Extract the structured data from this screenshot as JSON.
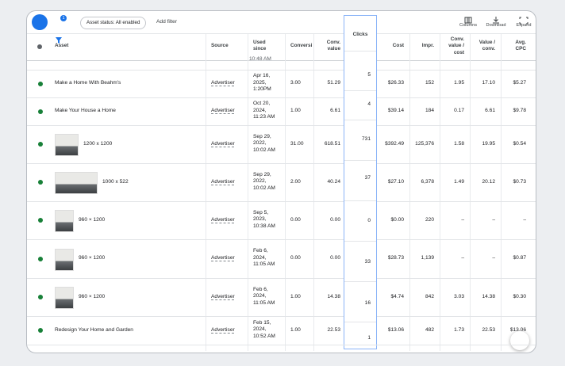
{
  "toolbar": {
    "filter_badge": "1",
    "status_chip": "Asset status: All enabled",
    "add_filter": "Add filter",
    "actions": [
      "Columns",
      "Download",
      "Expand"
    ]
  },
  "table": {
    "headers": [
      "Asset",
      "Source",
      "Used\nsince",
      "Conversi",
      "Conv.\nvalue",
      "Clicks",
      "Cost",
      "Impr.",
      "Conv.\nvalue /\ncost",
      "Value /\nconv.",
      "Avg.\nCPC"
    ],
    "partial_row_time": "10:48 AM",
    "rows": [
      {
        "thumbnail": false,
        "cells": [
          "Make a Home With Beahm's",
          "Advertiser",
          "Apr 16,\n2025,\n1:20PM",
          "3.00",
          "51.29",
          "5",
          "$26.33",
          "152",
          "1.95",
          "17.10",
          "$5.27"
        ]
      },
      {
        "thumbnail": false,
        "cells": [
          "Make Your House a Home",
          "Advertiser",
          "Oct 20,\n2024,\n11:23 AM",
          "1.00",
          "6.61",
          "4",
          "$39.14",
          "184",
          "0.17",
          "6.61",
          "$9.78"
        ]
      },
      {
        "thumbnail": true,
        "cells": [
          "1200 x 1200",
          "Advertiser",
          "Sep 29,\n2022,\n10:02 AM",
          "31.00",
          "618.51",
          "731",
          "$392.49",
          "125,376",
          "1.58",
          "19.95",
          "$0.54"
        ]
      },
      {
        "thumbnail": true,
        "cells": [
          "1000 x 522",
          "Advertiser",
          "Sep 29,\n2022,\n10:02 AM",
          "2.00",
          "40.24",
          "37",
          "$27.10",
          "6,378",
          "1.49",
          "20.12",
          "$0.73"
        ]
      },
      {
        "thumbnail": true,
        "cells": [
          "960 × 1200",
          "Advertiser",
          "Sep 5,\n2023,\n10:38 AM",
          "0.00",
          "0.00",
          "0",
          "$0.00",
          "220",
          "–",
          "–",
          "–"
        ]
      },
      {
        "thumbnail": true,
        "cells": [
          "960 × 1200",
          "Advertiser",
          "Feb 6,\n2024,\n11:05 AM",
          "0.00",
          "0.00",
          "33",
          "$28.73",
          "1,139",
          "–",
          "–",
          "$0.87"
        ]
      },
      {
        "thumbnail": true,
        "cells": [
          "960 × 1200",
          "Advertiser",
          "Feb 6,\n2024,\n11:05 AM",
          "1.00",
          "14.38",
          "16",
          "$4.74",
          "842",
          "3.03",
          "14.38",
          "$0.30"
        ]
      },
      {
        "thumbnail": false,
        "cells": [
          "Redesign Your Home and Garden",
          "Advertiser",
          "Feb 15,\n2024,\n10:52 AM",
          "1.00",
          "22.53",
          "1",
          "$13.06",
          "482",
          "1.73",
          "22.53",
          "$13.06"
        ]
      }
    ]
  }
}
